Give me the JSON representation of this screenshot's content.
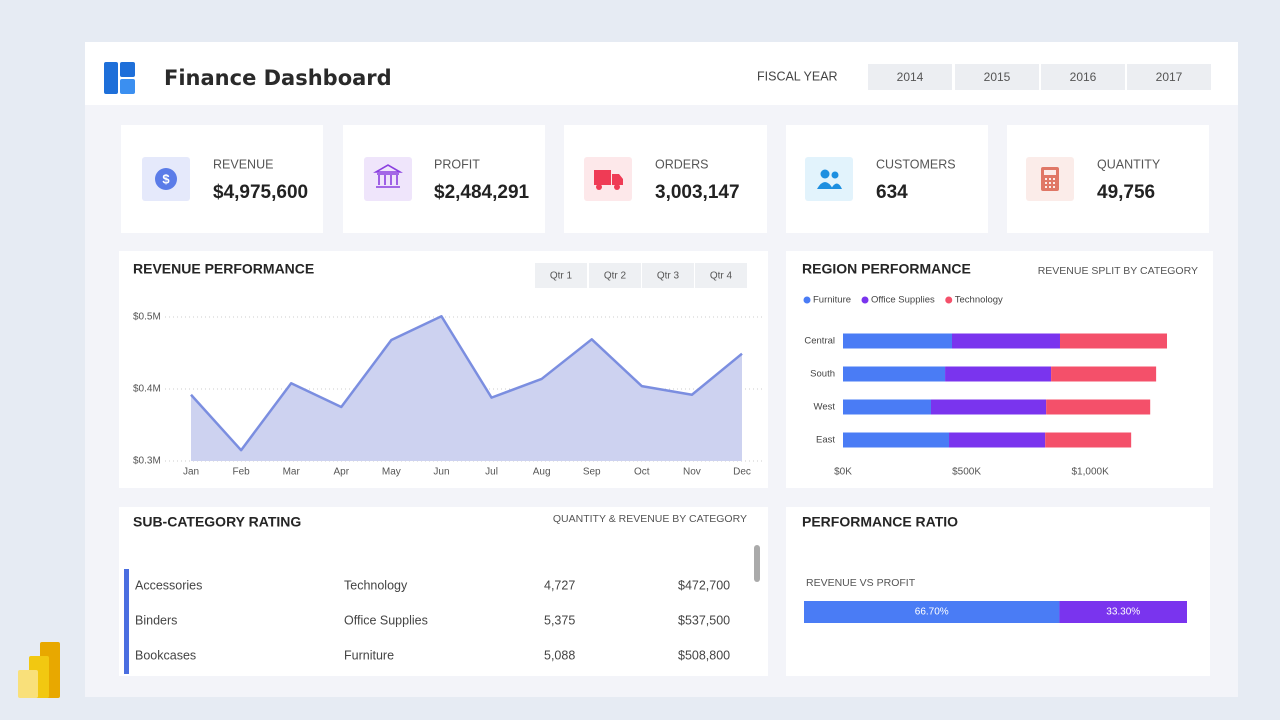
{
  "header": {
    "title": "Finance Dashboard",
    "fiscal_label": "FISCAL YEAR",
    "years": [
      "2014",
      "2015",
      "2016",
      "2017"
    ]
  },
  "kpis": [
    {
      "label": "REVENUE",
      "value": "$4,975,600"
    },
    {
      "label": "PROFIT",
      "value": "$2,484,291"
    },
    {
      "label": "ORDERS",
      "value": "3,003,147"
    },
    {
      "label": "CUSTOMERS",
      "value": "634"
    },
    {
      "label": "QUANTITY",
      "value": "49,756"
    }
  ],
  "revenue_chart": {
    "type": "area",
    "title": "REVENUE PERFORMANCE",
    "quarters": [
      "Qtr 1",
      "Qtr 2",
      "Qtr 3",
      "Qtr 4"
    ],
    "categories": [
      "Jan",
      "Feb",
      "Mar",
      "Apr",
      "May",
      "Jun",
      "Jul",
      "Aug",
      "Sep",
      "Oct",
      "Nov",
      "Dec"
    ],
    "values": [
      0.392,
      0.315,
      0.408,
      0.375,
      0.468,
      0.501,
      0.388,
      0.414,
      0.469,
      0.404,
      0.392,
      0.449
    ],
    "color": "#7b8ee0",
    "fill": "#cdd2f0",
    "ylim": [
      0.3,
      0.52
    ],
    "yticks": [
      {
        "value": 0.3,
        "label": "$0.3M"
      },
      {
        "value": 0.4,
        "label": "$0.4M"
      },
      {
        "value": 0.5,
        "label": "$0.5M"
      }
    ],
    "grid": true
  },
  "region_chart": {
    "type": "stacked-bar",
    "title": "REGION PERFORMANCE",
    "subtitle": "REVENUE SPLIT BY CATEGORY",
    "categories": [
      "Central",
      "South",
      "West",
      "East"
    ],
    "series": [
      {
        "name": "Furniture",
        "color": "#4a7cf5",
        "values": [
          441,
          413,
          356,
          429
        ]
      },
      {
        "name": "Office Supplies",
        "color": "#7a34ee",
        "values": [
          437,
          429,
          466,
          389
        ]
      },
      {
        "name": "Technology",
        "color": "#f4506a",
        "values": [
          433,
          425,
          421,
          348
        ]
      }
    ],
    "xlim": [
      0,
      1400
    ],
    "xticks": [
      {
        "value": 0,
        "label": "$0K"
      },
      {
        "value": 500,
        "label": "$500K"
      },
      {
        "value": 1000,
        "label": "$1,000K"
      }
    ]
  },
  "subcategory": {
    "title": "SUB-CATEGORY RATING",
    "subtitle": "QUANTITY & REVENUE BY CATEGORY",
    "rows": [
      [
        "Accessories",
        "Technology",
        "4,727",
        "$472,700"
      ],
      [
        "Binders",
        "Office Supplies",
        "5,375",
        "$537,500"
      ],
      [
        "Bookcases",
        "Furniture",
        "5,088",
        "$508,800"
      ]
    ]
  },
  "ratio": {
    "type": "stacked-bar",
    "title": "PERFORMANCE RATIO",
    "label": "REVENUE VS PROFIT",
    "values": [
      66.7,
      33.3
    ],
    "value_labels": [
      "66.70%",
      "33.30%"
    ],
    "colors": [
      "#4a7cf5",
      "#7a34ee"
    ],
    "xlim": [
      0,
      100
    ]
  }
}
